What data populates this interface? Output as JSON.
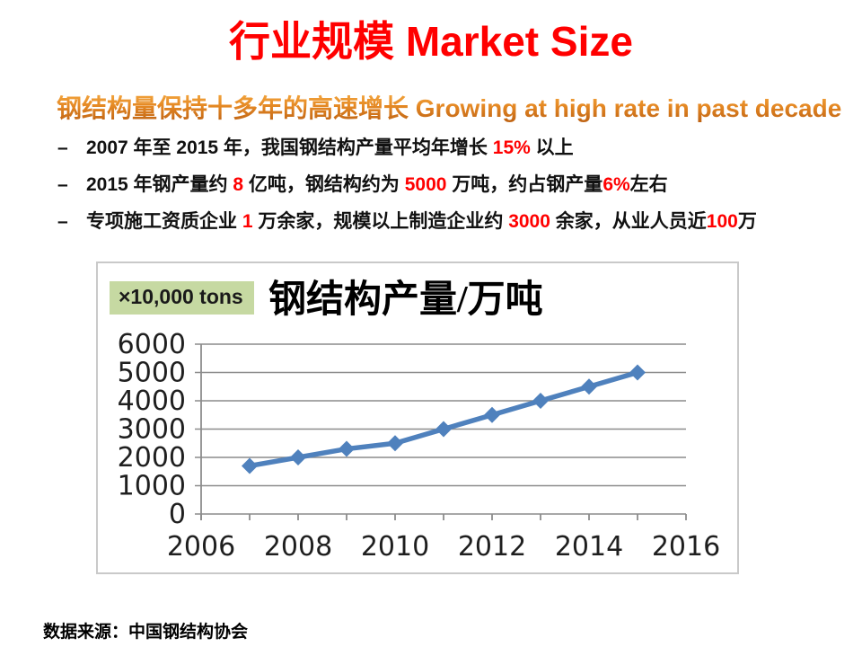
{
  "slide": {
    "title": "行业规模 Market Size",
    "subtitle": "钢结构量保持十多年的高速增长 Growing at high rate in past decade",
    "bullet_char": "–",
    "source_note": "数据来源：中国钢结构协会",
    "colors": {
      "title_red": "#FF0000",
      "number_red": "#FF0000",
      "subtitle_orange": "#DD7B1C",
      "unit_box_green": "#C6D9A2"
    }
  },
  "bullets": [
    {
      "segments": [
        {
          "t": "2007 年至 2015 年，我国钢结构产量平均年增长 "
        },
        {
          "t": "15% ",
          "red": true
        },
        {
          "t": "以上"
        }
      ]
    },
    {
      "segments": [
        {
          "t": "2015 年钢产量约 "
        },
        {
          "t": "8 ",
          "red": true
        },
        {
          "t": "亿吨，钢结构约为 "
        },
        {
          "t": "5000 ",
          "red": true
        },
        {
          "t": "万吨，约占钢产量"
        },
        {
          "t": "6%",
          "red": true
        },
        {
          "t": "左右"
        }
      ]
    },
    {
      "segments": [
        {
          "t": "专项施工资质企业 "
        },
        {
          "t": "1 ",
          "red": true
        },
        {
          "t": "万余家，规模以上制造企业约 "
        },
        {
          "t": "3000 ",
          "red": true
        },
        {
          "t": "余家，从业人员近"
        },
        {
          "t": "100",
          "red": true
        },
        {
          "t": "万"
        }
      ]
    }
  ],
  "chart_data": {
    "type": "line",
    "title": "钢结构产量/万吨",
    "unit_label": "×10,000 tons",
    "x": [
      2007,
      2008,
      2009,
      2010,
      2011,
      2012,
      2013,
      2014,
      2015
    ],
    "values": [
      1700,
      2000,
      2300,
      2500,
      3000,
      3500,
      4000,
      4500,
      5000
    ],
    "xlim": [
      2006,
      2016
    ],
    "ylim": [
      0,
      6000
    ],
    "x_ticks": [
      2006,
      2008,
      2010,
      2012,
      2014,
      2016
    ],
    "y_ticks": [
      0,
      1000,
      2000,
      3000,
      4000,
      5000,
      6000
    ],
    "grid": true,
    "legend_position": "none",
    "line_color": "#4F81BD",
    "marker": "diamond",
    "grid_color": "#8C8C8C",
    "axis_color": "#8C8C8C"
  }
}
